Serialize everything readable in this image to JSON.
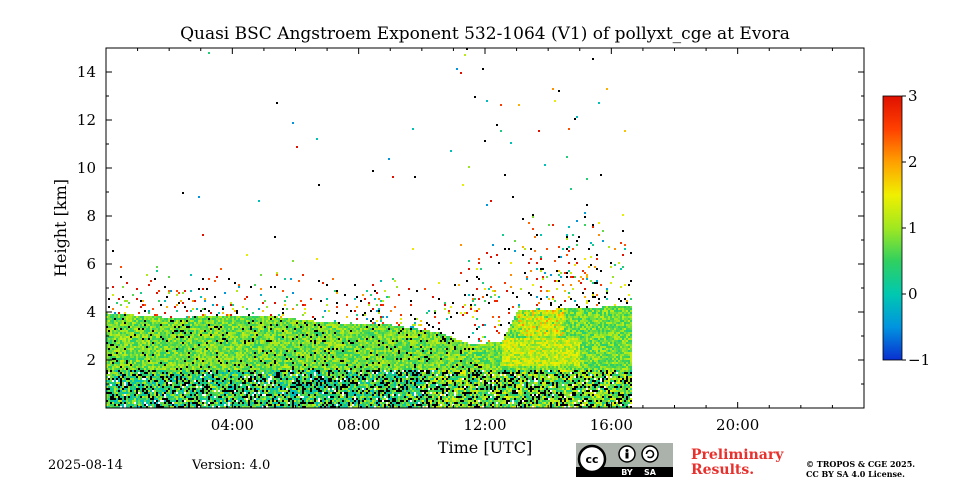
{
  "chart_data": {
    "type": "heatmap",
    "title": "Quasi BSC Angstroem Exponent 532-1064 (V1) of pollyxt_cge at Evora",
    "xlabel": "Time [UTC]",
    "ylabel": "Height [km]",
    "xlim_hours": [
      0,
      24
    ],
    "ylim_km": [
      0,
      15
    ],
    "x_ticks": [
      {
        "hour": 4,
        "label": "04:00"
      },
      {
        "hour": 8,
        "label": "08:00"
      },
      {
        "hour": 12,
        "label": "12:00"
      },
      {
        "hour": 16,
        "label": "16:00"
      },
      {
        "hour": 20,
        "label": "20:00"
      }
    ],
    "y_ticks": [
      {
        "km": 2,
        "label": "2"
      },
      {
        "km": 4,
        "label": "4"
      },
      {
        "km": 6,
        "label": "6"
      },
      {
        "km": 8,
        "label": "8"
      },
      {
        "km": 10,
        "label": "10"
      },
      {
        "km": 12,
        "label": "12"
      },
      {
        "km": 14,
        "label": "14"
      }
    ],
    "data_end_hour": 16.6,
    "layer_top_profile": [
      {
        "hour": 0,
        "km": 4.0
      },
      {
        "hour": 2,
        "km": 3.8
      },
      {
        "hour": 4,
        "km": 3.9
      },
      {
        "hour": 5,
        "km": 3.9
      },
      {
        "hour": 7,
        "km": 3.6
      },
      {
        "hour": 9,
        "km": 3.5
      },
      {
        "hour": 10.5,
        "km": 3.2
      },
      {
        "hour": 11.5,
        "km": 2.7
      },
      {
        "hour": 12.5,
        "km": 2.8
      },
      {
        "hour": 13,
        "km": 4.1
      },
      {
        "hour": 16.6,
        "km": 4.3
      }
    ],
    "colorbar": {
      "min": -1,
      "max": 3,
      "ticks": [
        {
          "value": -1,
          "label": "−1"
        },
        {
          "value": 0,
          "label": "0"
        },
        {
          "value": 1,
          "label": "1"
        },
        {
          "value": 2,
          "label": "2"
        },
        {
          "value": 3,
          "label": "3"
        }
      ],
      "colors": [
        "#0a2fd0",
        "#0094e0",
        "#00c8b0",
        "#30d060",
        "#a0e820",
        "#f0f000",
        "#ffa000",
        "#ff4000",
        "#e01000"
      ]
    }
  },
  "footer": {
    "date": "2025-08-14",
    "version": "Version: 4.0",
    "preliminary_line1": "Preliminary",
    "preliminary_line2": "Results.",
    "copyright_line1": "© TROPOS & CGE 2025.",
    "copyright_line2": "CC BY SA 4.0 License.",
    "license_by": "BY",
    "license_sa": "SA",
    "license_cc": "cc"
  }
}
